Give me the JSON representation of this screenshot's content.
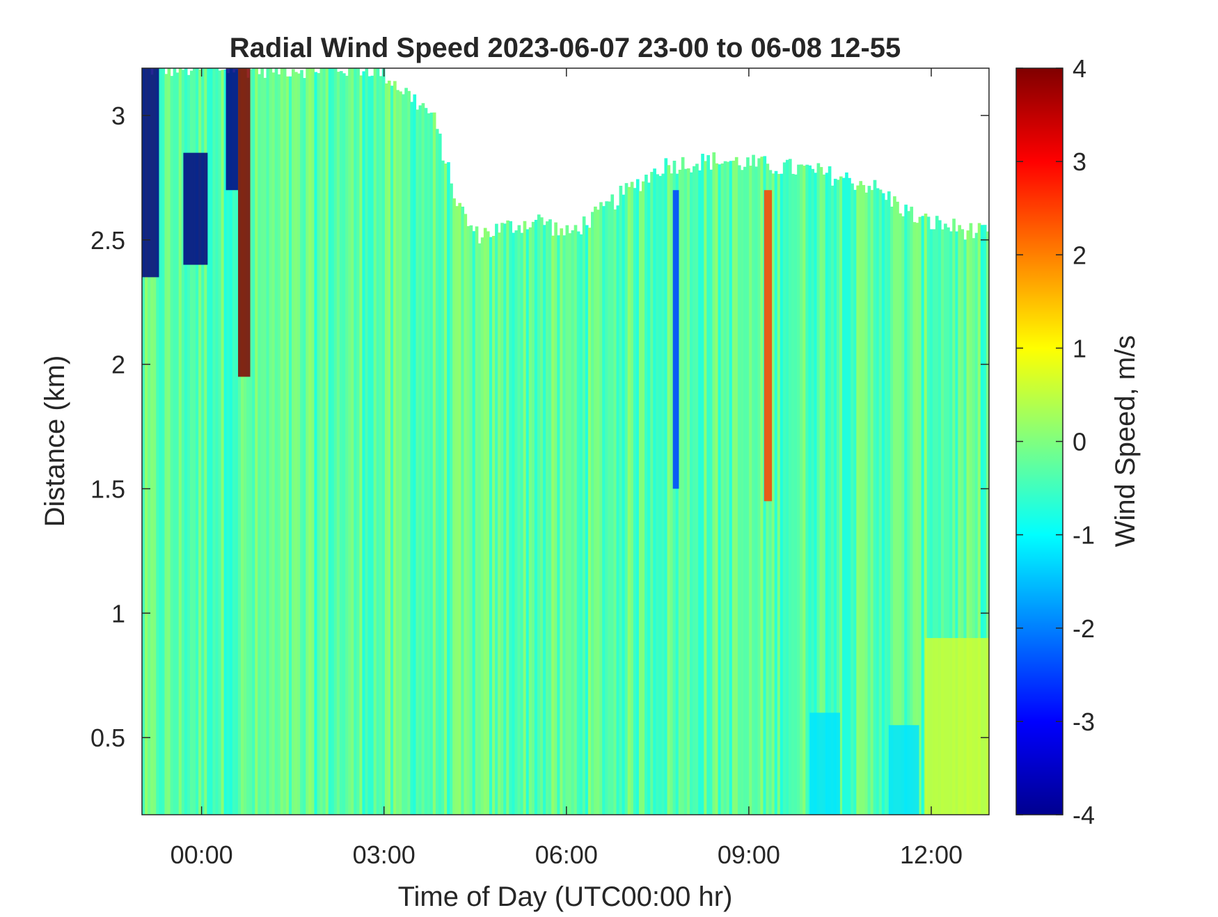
{
  "chart_data": {
    "type": "heatmap",
    "title": "Radial Wind Speed 2023-06-07 23-00 to 06-08 12-55",
    "xlabel": "Time of Day (UTC00:00 hr)",
    "ylabel": "Distance (km)",
    "colorbar_label": "Wind Speed, m/s",
    "colormap": "jet",
    "xlim": [
      -0.98,
      12.95
    ],
    "ylim": [
      0.19,
      3.19
    ],
    "clim": [
      -4,
      4
    ],
    "x_ticks": [
      {
        "value": 0,
        "label": "00:00"
      },
      {
        "value": 3,
        "label": "03:00"
      },
      {
        "value": 6,
        "label": "06:00"
      },
      {
        "value": 9,
        "label": "09:00"
      },
      {
        "value": 12,
        "label": "12:00"
      }
    ],
    "y_ticks": [
      {
        "value": 0.5,
        "label": "0.5"
      },
      {
        "value": 1,
        "label": "1"
      },
      {
        "value": 1.5,
        "label": "1.5"
      },
      {
        "value": 2,
        "label": "2"
      },
      {
        "value": 2.5,
        "label": "2.5"
      },
      {
        "value": 3,
        "label": "3"
      }
    ],
    "colorbar_ticks": [
      {
        "value": 4,
        "label": "4"
      },
      {
        "value": 3,
        "label": "3"
      },
      {
        "value": 2,
        "label": "2"
      },
      {
        "value": 1,
        "label": "1"
      },
      {
        "value": 0,
        "label": "0"
      },
      {
        "value": -1,
        "label": "-1"
      },
      {
        "value": -2,
        "label": "-2"
      },
      {
        "value": -3,
        "label": "-3"
      },
      {
        "value": -4,
        "label": "-4"
      }
    ],
    "background_speed": -0.3,
    "data_top_profile": [
      {
        "t": -0.98,
        "top_km": 3.19
      },
      {
        "t": 1.5,
        "top_km": 3.19
      },
      {
        "t": 2.9,
        "top_km": 3.19
      },
      {
        "t": 3.8,
        "top_km": 3.0
      },
      {
        "t": 4.2,
        "top_km": 2.65
      },
      {
        "t": 4.5,
        "top_km": 2.52
      },
      {
        "t": 5.0,
        "top_km": 2.55
      },
      {
        "t": 5.6,
        "top_km": 2.58
      },
      {
        "t": 6.0,
        "top_km": 2.52
      },
      {
        "t": 6.5,
        "top_km": 2.6
      },
      {
        "t": 6.9,
        "top_km": 2.68
      },
      {
        "t": 7.6,
        "top_km": 2.8
      },
      {
        "t": 8.5,
        "top_km": 2.82
      },
      {
        "t": 10.0,
        "top_km": 2.78
      },
      {
        "t": 11.0,
        "top_km": 2.72
      },
      {
        "t": 11.8,
        "top_km": 2.58
      },
      {
        "t": 12.95,
        "top_km": 2.52
      }
    ],
    "features": [
      {
        "t_start": -0.98,
        "t_end": -0.7,
        "z_bottom": 2.35,
        "z_top": 3.19,
        "speed": -4
      },
      {
        "t_start": -0.3,
        "t_end": 0.1,
        "z_bottom": 2.4,
        "z_top": 2.85,
        "speed": -4
      },
      {
        "t_start": 0.6,
        "t_end": 0.8,
        "z_bottom": 1.95,
        "z_top": 3.19,
        "speed": 4
      },
      {
        "t_start": 0.4,
        "t_end": 0.6,
        "z_bottom": 2.7,
        "z_top": 3.19,
        "speed": -4
      },
      {
        "t_start": 9.25,
        "t_end": 9.38,
        "z_bottom": 1.45,
        "z_top": 2.7,
        "speed": 2.5
      },
      {
        "t_start": 7.75,
        "t_end": 7.85,
        "z_bottom": 1.5,
        "z_top": 2.7,
        "speed": -2.5
      },
      {
        "t_start": 10.0,
        "t_end": 10.5,
        "z_bottom": 0.19,
        "z_top": 0.6,
        "speed": -1.2
      },
      {
        "t_start": 11.3,
        "t_end": 11.8,
        "z_bottom": 0.19,
        "z_top": 0.55,
        "speed": -1.2
      },
      {
        "t_start": 11.9,
        "t_end": 12.95,
        "z_bottom": 0.19,
        "z_top": 0.9,
        "speed": 0.6
      }
    ]
  }
}
